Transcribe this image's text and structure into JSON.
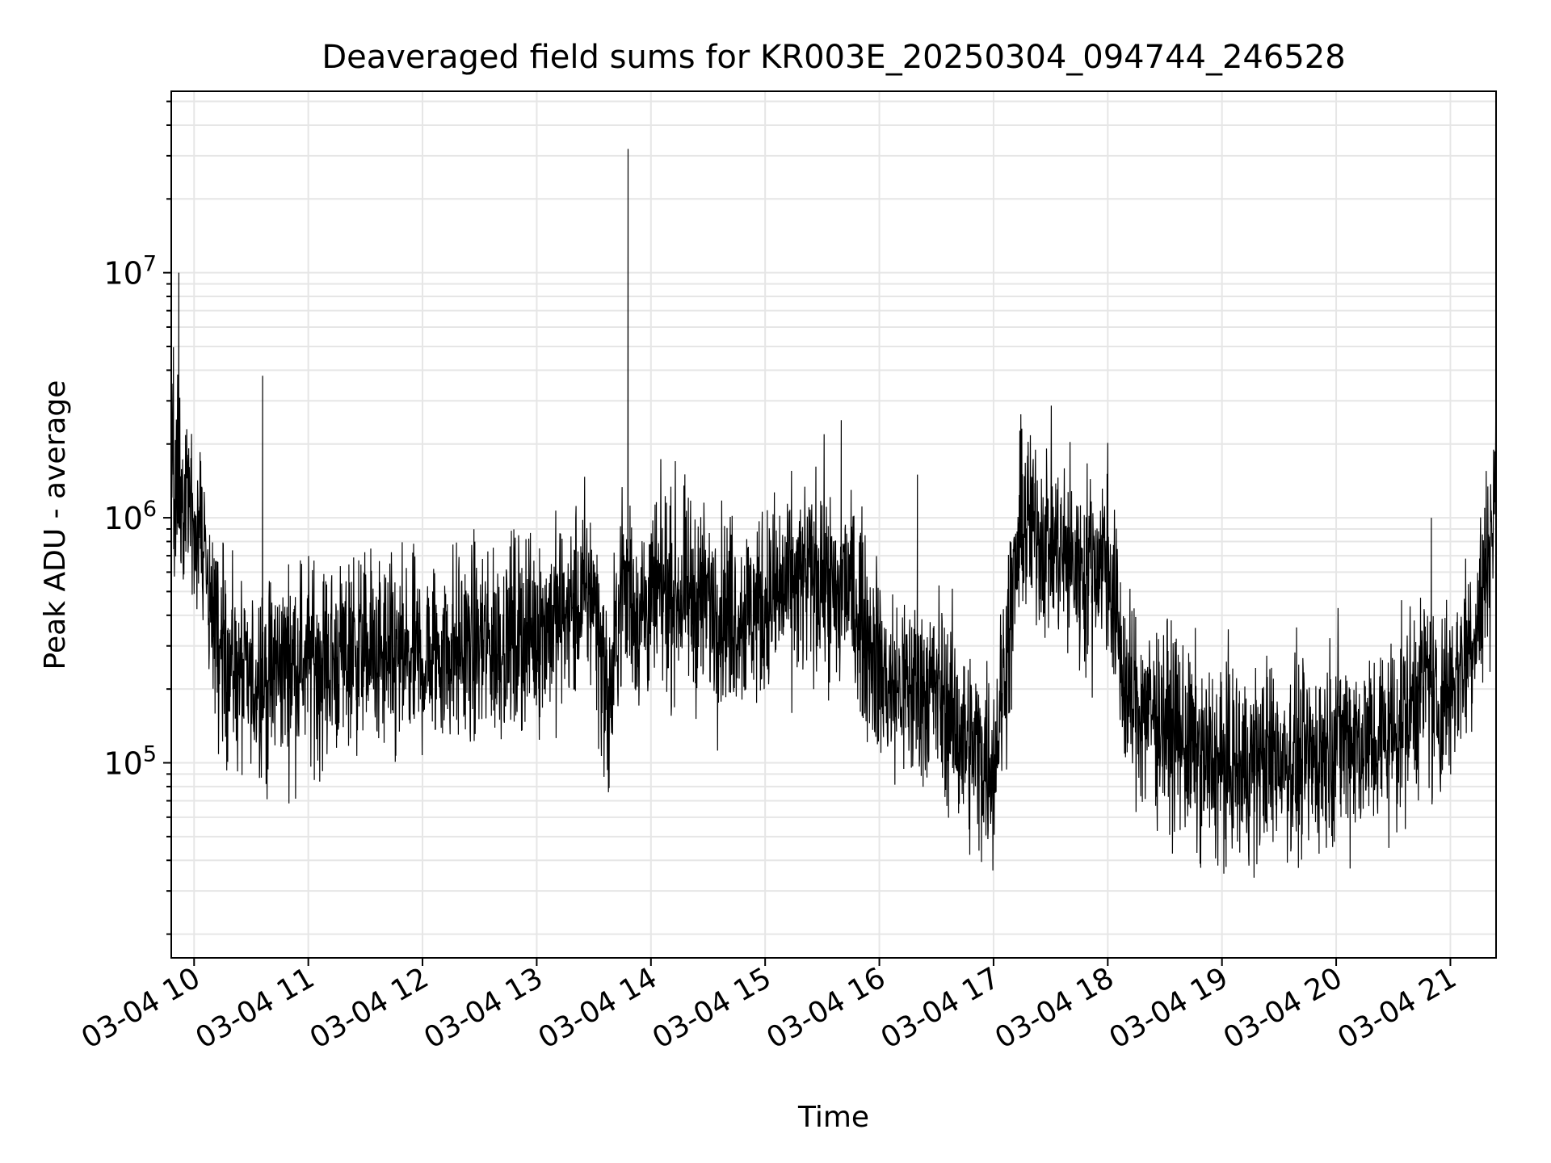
{
  "chart_data": {
    "type": "line",
    "title": "Deaveraged field sums for KR003E_20250304_094744_246528",
    "xlabel": "Time",
    "ylabel": "Peak ADU - average",
    "yscale": "log",
    "ylim": [
      16000,
      55000000
    ],
    "xlim": [
      "2025-03-04 09:48",
      "2025-03-04 21:24"
    ],
    "x_tick_labels": [
      "03-04 10",
      "03-04 11",
      "03-04 12",
      "03-04 13",
      "03-04 14",
      "03-04 15",
      "03-04 16",
      "03-04 17",
      "03-04 18",
      "03-04 19",
      "03-04 20",
      "03-04 21"
    ],
    "x_ticks": [
      "2025-03-04 10:00",
      "2025-03-04 11:00",
      "2025-03-04 12:00",
      "2025-03-04 13:00",
      "2025-03-04 14:00",
      "2025-03-04 15:00",
      "2025-03-04 16:00",
      "2025-03-04 17:00",
      "2025-03-04 18:00",
      "2025-03-04 19:00",
      "2025-03-04 20:00",
      "2025-03-04 21:00"
    ],
    "y_tick_labels": [
      {
        "base": "10",
        "exp": "5",
        "value": 100000
      },
      {
        "base": "10",
        "exp": "6",
        "value": 1000000
      },
      {
        "base": "10",
        "exp": "7",
        "value": 10000000
      }
    ],
    "grid": true,
    "line_color": "#000000",
    "series": [
      {
        "x": [
          "2025-03-04 09:48",
          "2025-03-04 09:52",
          "2025-03-04 09:54",
          "2025-03-04 09:58",
          "2025-03-04 10:05",
          "2025-03-04 10:12",
          "2025-03-04 10:20",
          "2025-03-04 10:30",
          "2025-03-04 10:36",
          "2025-03-04 10:45",
          "2025-03-04 11:00",
          "2025-03-04 11:10",
          "2025-03-04 11:25",
          "2025-03-04 11:31",
          "2025-03-04 11:45",
          "2025-03-04 12:00",
          "2025-03-04 12:10",
          "2025-03-04 12:30",
          "2025-03-04 12:45",
          "2025-03-04 13:00",
          "2025-03-04 13:15",
          "2025-03-04 13:30",
          "2025-03-04 13:38",
          "2025-03-04 13:45",
          "2025-03-04 13:48",
          "2025-03-04 13:52",
          "2025-03-04 14:10",
          "2025-03-04 14:30",
          "2025-03-04 14:50",
          "2025-03-04 15:10",
          "2025-03-04 15:30",
          "2025-03-04 15:40",
          "2025-03-04 15:50",
          "2025-03-04 16:05",
          "2025-03-04 16:20",
          "2025-03-04 16:30",
          "2025-03-04 16:45",
          "2025-03-04 17:00",
          "2025-03-04 17:15",
          "2025-03-04 17:30",
          "2025-03-04 17:45",
          "2025-03-04 18:00",
          "2025-03-04 18:10",
          "2025-03-04 18:30",
          "2025-03-04 18:50",
          "2025-03-04 19:10",
          "2025-03-04 19:30",
          "2025-03-04 19:45",
          "2025-03-04 20:00",
          "2025-03-04 20:20",
          "2025-03-04 20:35",
          "2025-03-04 20:50",
          "2025-03-04 21:05",
          "2025-03-04 21:15",
          "2025-03-04 21:24"
        ],
        "y": [
          1500000,
          10000000,
          1200000,
          1000000,
          800000,
          300000,
          250000,
          200000,
          3800000,
          250000,
          270000,
          250000,
          300000,
          280000,
          250000,
          260000,
          290000,
          300000,
          320000,
          350000,
          400000,
          500000,
          150000,
          600000,
          32000000,
          400000,
          500000,
          450000,
          400000,
          500000,
          600000,
          2500000,
          400000,
          200000,
          1500000,
          200000,
          120000,
          100000,
          1000000,
          800000,
          600000,
          700000,
          180000,
          150000,
          100000,
          95000,
          110000,
          100000,
          130000,
          120000,
          150000,
          1000000,
          250000,
          400000,
          1200000
        ]
      }
    ]
  }
}
